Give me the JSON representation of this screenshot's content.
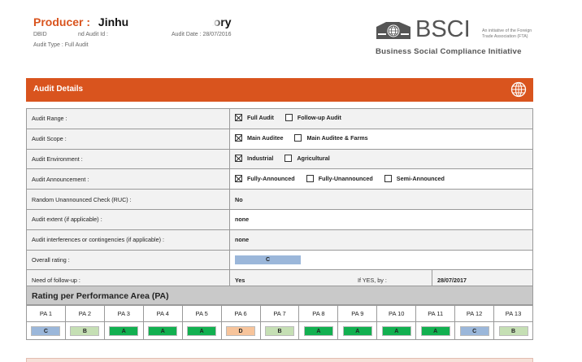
{
  "header": {
    "producer_label": "Producer :",
    "producer_name": "Jinhu",
    "producer_suffix": "s Factory",
    "dbid_label": "DBID",
    "audit_id_label": "nd Audit Id :",
    "audit_date": "Audit Date : 28/07/2016",
    "audit_type": "Audit Type : Full Audit"
  },
  "logo": {
    "name": "BSCI",
    "initiative_line1": "An initiative of the Foreign",
    "initiative_line2": "Trade Association (FTA)",
    "tagline": "Business Social Compliance Initiative"
  },
  "section": {
    "title": "Audit Details",
    "icon": "globe-icon",
    "accent": "#d9541e"
  },
  "rows": {
    "range": {
      "label": "Audit Range :",
      "opt1": "Full Audit",
      "opt2": "Follow-up Audit"
    },
    "scope": {
      "label": "Audit Scope :",
      "opt1": "Main Auditee",
      "opt2": "Main Auditee & Farms"
    },
    "environment": {
      "label": "Audit Environment :",
      "opt1": "Industrial",
      "opt2": "Agricultural"
    },
    "announcement": {
      "label": "Audit Announcement :",
      "opt1": "Fully-Announced",
      "opt2": "Fully-Unannounced",
      "opt3": "Semi-Announced"
    },
    "ruc": {
      "label": "Random Unannounced Check (RUC) :",
      "value": "No"
    },
    "extent": {
      "label": "Audit extent (if applicable) :",
      "value": "none"
    },
    "interferences": {
      "label": "Audit interferences or contingencies (if applicable) :",
      "value": "none"
    },
    "overall": {
      "label": "Overall rating :",
      "value": "C"
    },
    "followup": {
      "label": "Need of follow-up :",
      "value": "Yes",
      "if_yes_label": "If YES, by :",
      "date": "28/07/2017"
    }
  },
  "pa": {
    "title": "Rating per Performance Area (PA)",
    "headers": [
      "PA 1",
      "PA 2",
      "PA 3",
      "PA 4",
      "PA 5",
      "PA 6",
      "PA 7",
      "PA 8",
      "PA 9",
      "PA 10",
      "PA 11",
      "PA 12",
      "PA 13"
    ],
    "grades": [
      "C",
      "B",
      "A",
      "A",
      "A",
      "D",
      "B",
      "A",
      "A",
      "A",
      "A",
      "C",
      "B"
    ],
    "grade_colors": {
      "A": "#12b050",
      "B": "#c5dfb4",
      "C": "#9bb7da",
      "D": "#f7c49b"
    }
  }
}
